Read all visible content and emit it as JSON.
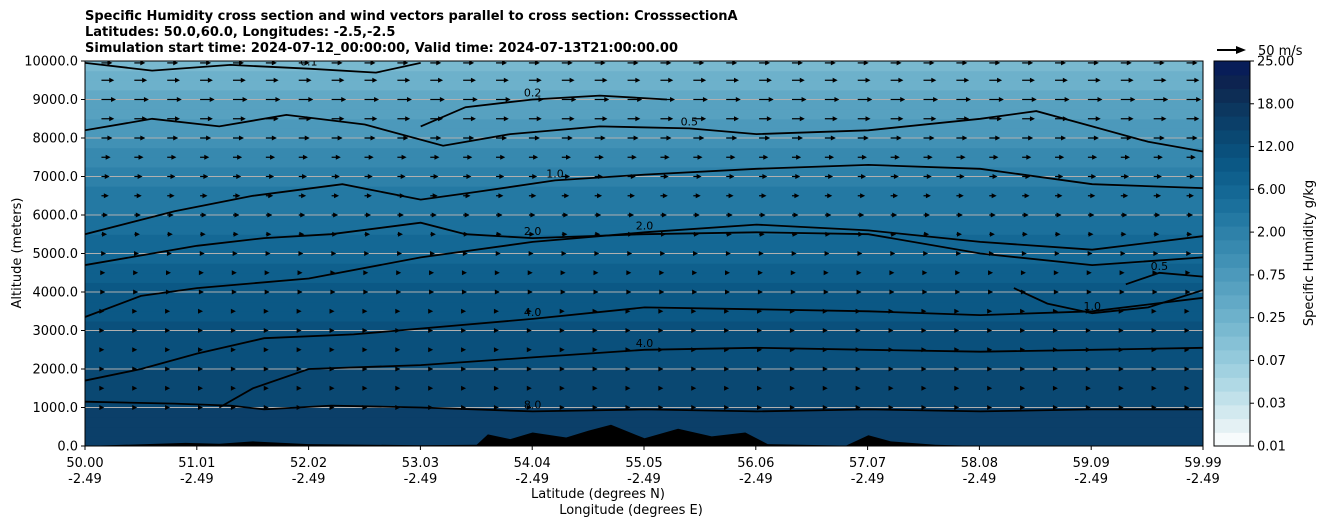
{
  "title_lines": [
    "Specific Humidity cross section and wind vectors parallel to cross section: CrosssectionA",
    "Latitudes: 50.0,60.0, Longitudes: -2.5,-2.5",
    "Simulation start time: 2024-07-12_00:00:00, Valid time: 2024-07-13T21:00:00.00"
  ],
  "chart_data": {
    "type": "heatmap",
    "title": "Specific Humidity cross section and wind vectors parallel to cross section: CrosssectionA",
    "xlabel": "Latitude (degrees N)",
    "xlabel2": "Longitude (degrees E)",
    "ylabel": "Altitude (meters)",
    "xlim": [
      50.0,
      59.99
    ],
    "ylim": [
      0,
      10000
    ],
    "x_ticks": [
      {
        "lat": "50.00",
        "lon": "-2.49"
      },
      {
        "lat": "51.01",
        "lon": "-2.49"
      },
      {
        "lat": "52.02",
        "lon": "-2.49"
      },
      {
        "lat": "53.03",
        "lon": "-2.49"
      },
      {
        "lat": "54.04",
        "lon": "-2.49"
      },
      {
        "lat": "55.05",
        "lon": "-2.49"
      },
      {
        "lat": "56.06",
        "lon": "-2.49"
      },
      {
        "lat": "57.07",
        "lon": "-2.49"
      },
      {
        "lat": "58.08",
        "lon": "-2.49"
      },
      {
        "lat": "59.09",
        "lon": "-2.49"
      },
      {
        "lat": "59.99",
        "lon": "-2.49"
      }
    ],
    "y_ticks": [
      "0.0",
      "1000.0",
      "2000.0",
      "3000.0",
      "4000.0",
      "5000.0",
      "6000.0",
      "7000.0",
      "8000.0",
      "9000.0",
      "10000.0"
    ],
    "y_tick_values": [
      0,
      1000,
      2000,
      3000,
      4000,
      5000,
      6000,
      7000,
      8000,
      9000,
      10000
    ],
    "grid": "horizontal",
    "colorbar": {
      "label": "Specific Humidity g/kg",
      "tick_labels": [
        "0.01",
        "0.03",
        "0.07",
        "0.25",
        "0.75",
        "2.00",
        "6.00",
        "12.00",
        "18.00",
        "25.00"
      ],
      "colors": [
        "#f7fbfc",
        "#e4f1f4",
        "#d2e9ef",
        "#c1e1ea",
        "#b0d9e5",
        "#a1d1e0",
        "#93c9db",
        "#86c1d6",
        "#79b9d0",
        "#6db1cb",
        "#62a9c6",
        "#57a1c0",
        "#4c99bb",
        "#4191b5",
        "#3789af",
        "#2e81a9",
        "#2479a3",
        "#1b709c",
        "#146895",
        "#0f608d",
        "#0b5885",
        "#0a507c",
        "#0a4872",
        "#0b3f69",
        "#0c375f",
        "#0d2d55",
        "#0d2350",
        "#081d58"
      ]
    },
    "quiver_key": {
      "label": "50 m/s",
      "value": 50
    },
    "contours": [
      {
        "level": 0.1,
        "label": "0.1"
      },
      {
        "level": 0.2,
        "label": "0.2"
      },
      {
        "level": 0.5,
        "label": "0.5"
      },
      {
        "level": 1.0,
        "label": "1.0"
      },
      {
        "level": 2.0,
        "label": "2.0"
      },
      {
        "level": 4.0,
        "label": "4.0"
      },
      {
        "level": 8.0,
        "label": "8.0"
      }
    ],
    "humidity_profile": [
      {
        "altitude": 0,
        "q": 9.0
      },
      {
        "altitude": 1000,
        "q": 7.0
      },
      {
        "altitude": 2000,
        "q": 5.0
      },
      {
        "altitude": 3000,
        "q": 4.0
      },
      {
        "altitude": 4000,
        "q": 3.0
      },
      {
        "altitude": 5000,
        "q": 2.0
      },
      {
        "altitude": 6000,
        "q": 1.2
      },
      {
        "altitude": 7000,
        "q": 0.8
      },
      {
        "altitude": 8000,
        "q": 0.4
      },
      {
        "altitude": 9000,
        "q": 0.2
      },
      {
        "altitude": 10000,
        "q": 0.1
      }
    ],
    "contour_lines": [
      {
        "level": "8.0",
        "points": [
          [
            50.0,
            1150
          ],
          [
            50.8,
            1100
          ],
          [
            51.3,
            1050
          ],
          [
            51.6,
            950
          ],
          [
            52.2,
            1050
          ],
          [
            53.0,
            1000
          ],
          [
            54.0,
            900
          ],
          [
            55.0,
            950
          ],
          [
            56.0,
            900
          ],
          [
            57.0,
            950
          ],
          [
            58.0,
            900
          ],
          [
            59.0,
            950
          ],
          [
            59.99,
            950
          ]
        ]
      },
      {
        "level": "4.0",
        "points": [
          [
            50.0,
            1700
          ],
          [
            50.5,
            2000
          ],
          [
            51.0,
            2400
          ],
          [
            51.6,
            2800
          ],
          [
            52.4,
            2900
          ],
          [
            53.2,
            3100
          ],
          [
            54.0,
            3300
          ],
          [
            55.0,
            3600
          ],
          [
            56.0,
            3550
          ],
          [
            57.0,
            3500
          ],
          [
            58.0,
            3400
          ],
          [
            59.0,
            3500
          ],
          [
            59.99,
            3850
          ]
        ]
      },
      {
        "level": "4.0",
        "points": [
          [
            51.2,
            1000
          ],
          [
            51.5,
            1500
          ],
          [
            52.0,
            2000
          ],
          [
            53.0,
            2100
          ],
          [
            54.0,
            2300
          ],
          [
            55.0,
            2500
          ],
          [
            56.0,
            2550
          ],
          [
            57.0,
            2500
          ],
          [
            58.0,
            2450
          ],
          [
            59.0,
            2500
          ],
          [
            59.99,
            2550
          ]
        ]
      },
      {
        "level": "2.0",
        "points": [
          [
            50.0,
            3350
          ],
          [
            50.5,
            3900
          ],
          [
            51.0,
            4100
          ],
          [
            52.0,
            4350
          ],
          [
            53.0,
            4900
          ],
          [
            54.0,
            5300
          ],
          [
            55.0,
            5550
          ],
          [
            56.0,
            5750
          ],
          [
            57.0,
            5600
          ],
          [
            58.0,
            5300
          ],
          [
            59.0,
            5100
          ],
          [
            59.99,
            5450
          ]
        ]
      },
      {
        "level": "2.0",
        "points": [
          [
            50.0,
            4700
          ],
          [
            51.0,
            5200
          ],
          [
            51.6,
            5400
          ],
          [
            52.2,
            5500
          ],
          [
            53.0,
            5800
          ],
          [
            53.4,
            5500
          ],
          [
            54.0,
            5400
          ],
          [
            55.0,
            5500
          ],
          [
            56.0,
            5550
          ],
          [
            57.0,
            5500
          ],
          [
            58.0,
            5000
          ],
          [
            59.0,
            4700
          ],
          [
            59.99,
            4900
          ]
        ]
      },
      {
        "level": "1.0",
        "points": [
          [
            50.0,
            5500
          ],
          [
            50.8,
            6100
          ],
          [
            51.5,
            6500
          ],
          [
            52.3,
            6800
          ],
          [
            53.0,
            6400
          ],
          [
            53.5,
            6600
          ],
          [
            54.2,
            6900
          ],
          [
            55.0,
            7050
          ],
          [
            56.0,
            7200
          ],
          [
            57.0,
            7300
          ],
          [
            58.0,
            7200
          ],
          [
            59.0,
            6800
          ],
          [
            59.99,
            6700
          ]
        ]
      },
      {
        "level": "1.0",
        "points": [
          [
            58.3,
            4100
          ],
          [
            58.6,
            3700
          ],
          [
            59.0,
            3450
          ],
          [
            59.5,
            3600
          ],
          [
            59.99,
            4050
          ]
        ]
      },
      {
        "level": "0.5",
        "points": [
          [
            50.0,
            8200
          ],
          [
            50.6,
            8500
          ],
          [
            51.2,
            8300
          ],
          [
            51.8,
            8600
          ],
          [
            52.5,
            8350
          ],
          [
            53.2,
            7800
          ],
          [
            53.8,
            8100
          ],
          [
            54.6,
            8300
          ],
          [
            55.4,
            8250
          ],
          [
            56.0,
            8100
          ],
          [
            57.0,
            8200
          ],
          [
            58.0,
            8500
          ],
          [
            58.5,
            8700
          ],
          [
            59.0,
            8300
          ],
          [
            59.5,
            7900
          ],
          [
            59.99,
            7650
          ]
        ]
      },
      {
        "level": "0.5",
        "points": [
          [
            59.3,
            4200
          ],
          [
            59.6,
            4500
          ],
          [
            59.99,
            4400
          ]
        ]
      },
      {
        "level": "0.2",
        "points": [
          [
            53.0,
            8300
          ],
          [
            53.4,
            8800
          ],
          [
            54.0,
            9000
          ],
          [
            54.6,
            9100
          ],
          [
            55.2,
            9000
          ]
        ]
      },
      {
        "level": "0.1",
        "points": [
          [
            50.0,
            9950
          ],
          [
            50.6,
            9750
          ],
          [
            51.3,
            9900
          ],
          [
            52.0,
            9800
          ],
          [
            52.6,
            9700
          ],
          [
            53.0,
            9950
          ]
        ]
      }
    ],
    "terrain": [
      {
        "lat": 50.0,
        "altitude": 0
      },
      {
        "lat": 50.9,
        "altitude": 80
      },
      {
        "lat": 51.2,
        "altitude": 60
      },
      {
        "lat": 51.5,
        "altitude": 120
      },
      {
        "lat": 52.0,
        "altitude": 50
      },
      {
        "lat": 53.0,
        "altitude": 20
      },
      {
        "lat": 53.5,
        "altitude": 30
      },
      {
        "lat": 53.6,
        "altitude": 300
      },
      {
        "lat": 53.8,
        "altitude": 180
      },
      {
        "lat": 54.0,
        "altitude": 350
      },
      {
        "lat": 54.3,
        "altitude": 220
      },
      {
        "lat": 54.5,
        "altitude": 400
      },
      {
        "lat": 54.7,
        "altitude": 550
      },
      {
        "lat": 55.0,
        "altitude": 200
      },
      {
        "lat": 55.3,
        "altitude": 450
      },
      {
        "lat": 55.6,
        "altitude": 250
      },
      {
        "lat": 55.9,
        "altitude": 350
      },
      {
        "lat": 56.1,
        "altitude": 50
      },
      {
        "lat": 56.8,
        "altitude": 10
      },
      {
        "lat": 57.0,
        "altitude": 280
      },
      {
        "lat": 57.2,
        "altitude": 120
      },
      {
        "lat": 57.6,
        "altitude": 30
      },
      {
        "lat": 58.0,
        "altitude": 0
      },
      {
        "lat": 59.99,
        "altitude": 0
      }
    ],
    "wind_rows": [
      {
        "altitude": 9950,
        "u": 10
      },
      {
        "altitude": 9500,
        "u": 12
      },
      {
        "altitude": 9000,
        "u": 14
      },
      {
        "altitude": 8500,
        "u": 12
      },
      {
        "altitude": 8000,
        "u": 10
      },
      {
        "altitude": 7500,
        "u": 8
      },
      {
        "altitude": 7000,
        "u": 7
      },
      {
        "altitude": 6500,
        "u": 6
      },
      {
        "altitude": 6000,
        "u": 5
      },
      {
        "altitude": 5500,
        "u": 4
      },
      {
        "altitude": 5000,
        "u": 3
      },
      {
        "altitude": 4500,
        "u": 2
      },
      {
        "altitude": 4000,
        "u": 2
      },
      {
        "altitude": 3500,
        "u": 1
      },
      {
        "altitude": 3000,
        "u": 1
      },
      {
        "altitude": 2500,
        "u": 1
      },
      {
        "altitude": 2000,
        "u": 1
      },
      {
        "altitude": 1500,
        "u": 1
      },
      {
        "altitude": 1000,
        "u": 1
      }
    ]
  }
}
